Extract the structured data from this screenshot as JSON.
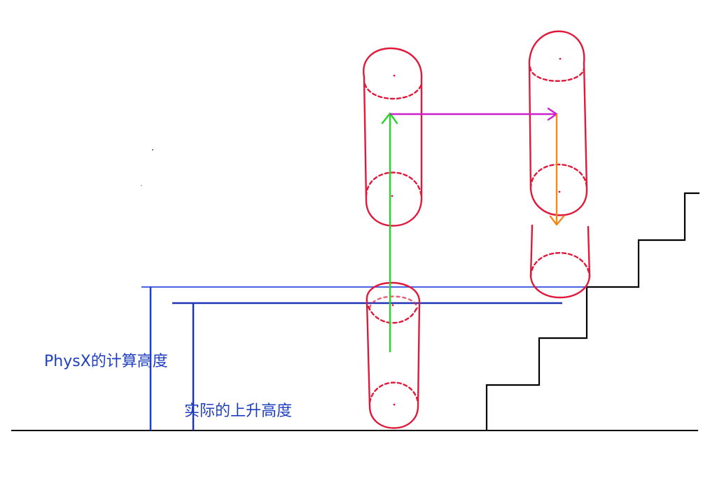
{
  "labels": {
    "physx_height": "PhysX的计算高度",
    "actual_height": "实际的上升高度"
  },
  "colors": {
    "physx_label": "#1e3fbf",
    "actual_label": "#1e3fbf",
    "physx_line": "#4a63e0",
    "actual_line": "#1f33b8",
    "capsule": "#e0193b",
    "step": "#000000",
    "ground": "#000000",
    "up_arrow": "#27d327",
    "forward_arrow": "#cc22cc",
    "down_arrow": "#f08a1c"
  },
  "icons": {
    "up_arrow": "arrow-up-icon",
    "forward_arrow": "arrow-right-icon",
    "down_arrow": "arrow-down-icon"
  }
}
